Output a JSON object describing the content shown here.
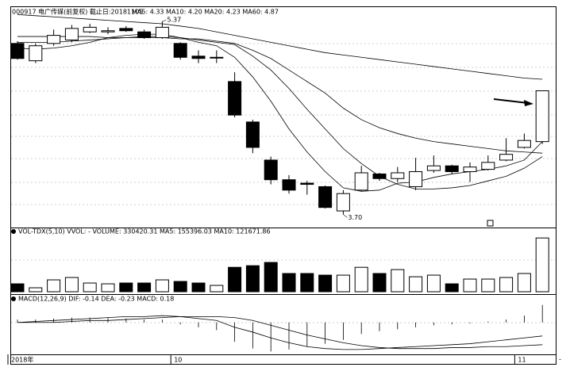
{
  "chart_data": [
    {
      "type": "candlestick",
      "title": "000917 电广传媒(前复权) 截止日:20181105",
      "subtitle": "MA5: 4.33 MA10: 4.20 MA20: 4.23 MA60: 4.87",
      "categories": [
        "2018年",
        null,
        null,
        null,
        null,
        null,
        null,
        null,
        null,
        "10",
        null,
        null,
        null,
        null,
        null,
        null,
        null,
        null,
        null,
        null,
        null,
        null,
        null,
        null,
        null,
        null,
        null,
        null,
        "11",
        null
      ],
      "open": [
        5.18,
        5.03,
        5.18,
        5.21,
        5.28,
        5.28,
        5.31,
        5.28,
        5.23,
        5.18,
        5.07,
        5.06,
        4.85,
        4.5,
        4.17,
        4.0,
        3.97,
        3.94,
        3.73,
        3.91,
        4.05,
        4.01,
        3.94,
        4.08,
        4.12,
        4.07,
        4.09,
        4.17,
        4.28,
        4.33
      ],
      "high": [
        5.2,
        5.18,
        5.3,
        5.34,
        5.35,
        5.32,
        5.33,
        5.3,
        5.37,
        5.19,
        5.12,
        5.12,
        4.93,
        4.52,
        4.2,
        4.04,
        3.99,
        3.95,
        3.91,
        4.12,
        4.06,
        4.11,
        4.19,
        4.21,
        4.13,
        4.15,
        4.21,
        4.36,
        4.4,
        4.77
      ],
      "low": [
        5.04,
        5.01,
        5.16,
        5.19,
        5.27,
        5.26,
        5.28,
        5.22,
        5.22,
        5.04,
        5.01,
        5.01,
        4.54,
        4.23,
        3.96,
        3.88,
        3.87,
        3.75,
        3.7,
        3.9,
        3.99,
        3.98,
        3.91,
        4.06,
        4.05,
        3.98,
        4.08,
        4.16,
        4.27,
        4.31
      ],
      "close": [
        5.05,
        5.16,
        5.25,
        5.31,
        5.32,
        5.29,
        5.29,
        5.23,
        5.32,
        5.06,
        5.05,
        5.06,
        4.56,
        4.28,
        4.0,
        3.91,
        3.96,
        3.76,
        3.88,
        4.06,
        4.01,
        4.06,
        4.07,
        4.12,
        4.07,
        4.11,
        4.15,
        4.22,
        4.34,
        4.77
      ],
      "up_color": "#ffffff",
      "down_color": "#000000",
      "series": [
        {
          "color": "#000000",
          "values": [
            5.14,
            5.13,
            5.14,
            5.16,
            5.19,
            5.23,
            5.25,
            5.26,
            5.26,
            5.23,
            5.19,
            5.16,
            5.06,
            4.89,
            4.68,
            4.44,
            4.24,
            4.07,
            3.93,
            3.9,
            3.91,
            3.97,
            3.98,
            4.02,
            4.05,
            4.07,
            4.09,
            4.12,
            4.17,
            4.33
          ]
        },
        {
          "color": "#000000",
          "values": [
            5.19,
            5.19,
            5.19,
            5.2,
            5.21,
            5.22,
            5.23,
            5.24,
            5.24,
            5.23,
            5.21,
            5.19,
            5.17,
            5.07,
            4.95,
            4.79,
            4.61,
            4.44,
            4.27,
            4.14,
            4.03,
            3.96,
            3.92,
            3.92,
            3.93,
            3.95,
            3.99,
            4.03,
            4.1,
            4.2
          ]
        },
        {
          "color": "#000000",
          "values": [
            5.24,
            5.24,
            5.24,
            5.24,
            5.24,
            5.23,
            5.23,
            5.23,
            5.23,
            5.22,
            5.22,
            5.2,
            5.18,
            5.12,
            5.05,
            4.95,
            4.85,
            4.75,
            4.62,
            4.52,
            4.45,
            4.4,
            4.36,
            4.33,
            4.31,
            4.29,
            4.27,
            4.25,
            4.24,
            4.23
          ]
        },
        {
          "color": "#000000",
          "values": [
            5.43,
            5.42,
            5.41,
            5.4,
            5.39,
            5.38,
            5.37,
            5.36,
            5.35,
            5.33,
            5.31,
            5.28,
            5.25,
            5.22,
            5.19,
            5.16,
            5.13,
            5.1,
            5.08,
            5.06,
            5.04,
            5.02,
            5.0,
            4.98,
            4.96,
            4.94,
            4.92,
            4.9,
            4.88,
            4.87
          ]
        }
      ],
      "annotations": [
        {
          "value": 5.37,
          "label": "5.37"
        },
        {
          "value": 3.7,
          "label": "3.70"
        }
      ],
      "ylim": [
        3.6,
        5.46
      ]
    },
    {
      "type": "bar",
      "title": "VOL-TDX(5,10) VVOL: - VOLUME: 330420.31 MA5: 155396.03 MA10: 121671.86",
      "values": [
        48600,
        24300,
        72900,
        87500,
        53500,
        48600,
        53500,
        53500,
        72900,
        63200,
        53500,
        38900,
        150000,
        160000,
        180000,
        112000,
        112000,
        102000,
        102000,
        150000,
        112000,
        136000,
        92000,
        102000,
        48600,
        77800,
        77800,
        87500,
        112000,
        330420.31
      ],
      "ylim": [
        0,
        380000
      ]
    },
    {
      "type": "macd",
      "title": "MACD(12,26,9) DIF: -0.14 DEA: -0.23 MACD: 0.18",
      "values": [
        0.03,
        0.03,
        0.04,
        0.05,
        0.05,
        0.05,
        0.04,
        0.03,
        0.03,
        -0.02,
        -0.05,
        -0.08,
        -0.2,
        -0.27,
        -0.3,
        -0.28,
        -0.25,
        -0.22,
        -0.18,
        -0.12,
        -0.09,
        -0.07,
        -0.05,
        -0.03,
        -0.02,
        -0.01,
        0.01,
        0.03,
        0.07,
        0.18
      ],
      "series": [
        {
          "color": "#000000",
          "values": [
            0.0,
            0.01,
            0.02,
            0.03,
            0.04,
            0.05,
            0.06,
            0.06,
            0.07,
            0.06,
            0.04,
            0.02,
            -0.05,
            -0.1,
            -0.16,
            -0.21,
            -0.25,
            -0.27,
            -0.28,
            -0.28,
            -0.27,
            -0.26,
            -0.25,
            -0.24,
            -0.23,
            -0.22,
            -0.2,
            -0.18,
            -0.16,
            -0.14
          ]
        },
        {
          "color": "#000000",
          "values": [
            0.0,
            0.0,
            0.0,
            0.01,
            0.02,
            0.02,
            0.03,
            0.04,
            0.05,
            0.06,
            0.06,
            0.06,
            0.05,
            0.02,
            -0.03,
            -0.08,
            -0.13,
            -0.17,
            -0.21,
            -0.24,
            -0.26,
            -0.27,
            -0.27,
            -0.27,
            -0.26,
            -0.26,
            -0.25,
            -0.25,
            -0.24,
            -0.23
          ]
        }
      ],
      "ylim": [
        -0.33,
        0.26
      ]
    }
  ]
}
